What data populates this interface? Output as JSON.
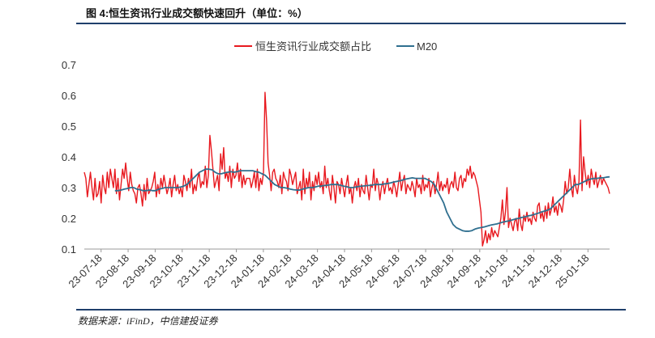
{
  "figure": {
    "title": "图 4:恒生资讯行业成交额快速回升（单位：%）",
    "source": "数据来源：iFinD，中信建投证券"
  },
  "chart_data": {
    "type": "line",
    "title": "图 4:恒生资讯行业成交额快速回升（单位：%）",
    "xlabel": "",
    "ylabel": "",
    "ylim": [
      0.1,
      0.7
    ],
    "yticks": [
      "0.1",
      "0.2",
      "0.3",
      "0.4",
      "0.5",
      "0.6",
      "0.7"
    ],
    "x_tick_labels": [
      "23-07-18",
      "23-08-18",
      "23-09-18",
      "23-10-18",
      "23-11-18",
      "23-12-18",
      "24-01-18",
      "24-02-18",
      "24-03-18",
      "24-04-18",
      "24-05-18",
      "24-06-18",
      "24-07-18",
      "24-08-18",
      "24-09-18",
      "24-10-18",
      "24-11-18",
      "24-12-18",
      "25-01-18"
    ],
    "legend": [
      "恒生资讯行业成交额占比",
      "M20"
    ],
    "legend_position": "top-center",
    "colors": {
      "share": "#e8191f",
      "ma": "#2f6f8f"
    },
    "series": [
      {
        "name": "恒生资讯行业成交额占比",
        "values": [
          0.35,
          0.33,
          0.27,
          0.31,
          0.35,
          0.3,
          0.26,
          0.33,
          0.27,
          0.28,
          0.32,
          0.25,
          0.34,
          0.3,
          0.28,
          0.35,
          0.3,
          0.36,
          0.33,
          0.3,
          0.36,
          0.28,
          0.33,
          0.26,
          0.31,
          0.36,
          0.33,
          0.38,
          0.33,
          0.29,
          0.35,
          0.31,
          0.29,
          0.28,
          0.25,
          0.3,
          0.31,
          0.28,
          0.24,
          0.31,
          0.26,
          0.33,
          0.28,
          0.29,
          0.3,
          0.32,
          0.35,
          0.27,
          0.31,
          0.28,
          0.33,
          0.3,
          0.34,
          0.31,
          0.28,
          0.3,
          0.33,
          0.27,
          0.31,
          0.34,
          0.29,
          0.31,
          0.28,
          0.3,
          0.27,
          0.34,
          0.32,
          0.29,
          0.33,
          0.3,
          0.36,
          0.28,
          0.31,
          0.29,
          0.33,
          0.35,
          0.3,
          0.32,
          0.31,
          0.37,
          0.3,
          0.34,
          0.47,
          0.42,
          0.36,
          0.3,
          0.32,
          0.34,
          0.29,
          0.41,
          0.36,
          0.43,
          0.33,
          0.35,
          0.32,
          0.37,
          0.3,
          0.36,
          0.33,
          0.34,
          0.38,
          0.32,
          0.36,
          0.3,
          0.34,
          0.31,
          0.33,
          0.33,
          0.33,
          0.3,
          0.32,
          0.35,
          0.3,
          0.36,
          0.29,
          0.33,
          0.31,
          0.35,
          0.61,
          0.52,
          0.38,
          0.34,
          0.29,
          0.35,
          0.36,
          0.33,
          0.32,
          0.3,
          0.34,
          0.28,
          0.35,
          0.33,
          0.32,
          0.29,
          0.36,
          0.34,
          0.31,
          0.33,
          0.35,
          0.28,
          0.3,
          0.32,
          0.26,
          0.36,
          0.28,
          0.33,
          0.3,
          0.35,
          0.26,
          0.32,
          0.29,
          0.34,
          0.31,
          0.35,
          0.3,
          0.32,
          0.28,
          0.37,
          0.3,
          0.33,
          0.29,
          0.26,
          0.34,
          0.3,
          0.25,
          0.32,
          0.31,
          0.28,
          0.33,
          0.3,
          0.27,
          0.31,
          0.34,
          0.28,
          0.3,
          0.25,
          0.3,
          0.32,
          0.29,
          0.33,
          0.27,
          0.31,
          0.29,
          0.28,
          0.34,
          0.3,
          0.26,
          0.31,
          0.3,
          0.36,
          0.29,
          0.33,
          0.31,
          0.26,
          0.3,
          0.32,
          0.28,
          0.31,
          0.33,
          0.29,
          0.3,
          0.28,
          0.32,
          0.3,
          0.27,
          0.31,
          0.35,
          0.29,
          0.32,
          0.34,
          0.28,
          0.31,
          0.3,
          0.29,
          0.32,
          0.3,
          0.27,
          0.33,
          0.3,
          0.31,
          0.28,
          0.34,
          0.29,
          0.31,
          0.3,
          0.33,
          0.27,
          0.3,
          0.32,
          0.28,
          0.31,
          0.35,
          0.29,
          0.32,
          0.29,
          0.31,
          0.3,
          0.33,
          0.28,
          0.31,
          0.32,
          0.3,
          0.35,
          0.3,
          0.29,
          0.33,
          0.34,
          0.3,
          0.33,
          0.32,
          0.36,
          0.34,
          0.37,
          0.33,
          0.35,
          0.34,
          0.32,
          0.3,
          0.26,
          0.22,
          0.11,
          0.13,
          0.16,
          0.12,
          0.15,
          0.13,
          0.17,
          0.14,
          0.16,
          0.15,
          0.14,
          0.17,
          0.2,
          0.26,
          0.18,
          0.22,
          0.3,
          0.17,
          0.2,
          0.18,
          0.16,
          0.19,
          0.2,
          0.16,
          0.23,
          0.18,
          0.16,
          0.21,
          0.19,
          0.22,
          0.19,
          0.2,
          0.18,
          0.22,
          0.2,
          0.19,
          0.24,
          0.25,
          0.2,
          0.22,
          0.19,
          0.24,
          0.2,
          0.25,
          0.21,
          0.23,
          0.27,
          0.22,
          0.24,
          0.21,
          0.25,
          0.24,
          0.22,
          0.26,
          0.32,
          0.28,
          0.3,
          0.36,
          0.3,
          0.27,
          0.34,
          0.3,
          0.28,
          0.32,
          0.52,
          0.29,
          0.4,
          0.35,
          0.31,
          0.34,
          0.3,
          0.36,
          0.33,
          0.31,
          0.35,
          0.3,
          0.32,
          0.34,
          0.31,
          0.33,
          0.32,
          0.31,
          0.3,
          0.28
        ]
      },
      {
        "name": "M20",
        "values": [
          0.29,
          0.29,
          0.292,
          0.295,
          0.297,
          0.3,
          0.3,
          0.295,
          0.293,
          0.29,
          0.29,
          0.292,
          0.29,
          0.29,
          0.295,
          0.297,
          0.3,
          0.3,
          0.3,
          0.3,
          0.3,
          0.302,
          0.305,
          0.31,
          0.32,
          0.33,
          0.34,
          0.35,
          0.355,
          0.36,
          0.36,
          0.358,
          0.35,
          0.345,
          0.345,
          0.348,
          0.35,
          0.352,
          0.35,
          0.352,
          0.355,
          0.355,
          0.355,
          0.355,
          0.355,
          0.352,
          0.35,
          0.345,
          0.34,
          0.33,
          0.32,
          0.31,
          0.305,
          0.3,
          0.3,
          0.298,
          0.295,
          0.293,
          0.292,
          0.292,
          0.295,
          0.298,
          0.3,
          0.3,
          0.302,
          0.305,
          0.305,
          0.307,
          0.308,
          0.31,
          0.31,
          0.31,
          0.308,
          0.305,
          0.303,
          0.3,
          0.3,
          0.302,
          0.304,
          0.305,
          0.306,
          0.307,
          0.308,
          0.31,
          0.31,
          0.31,
          0.312,
          0.313,
          0.315,
          0.318,
          0.32,
          0.322,
          0.325,
          0.328,
          0.33,
          0.332,
          0.33,
          0.33,
          0.33,
          0.33,
          0.325,
          0.32,
          0.31,
          0.29,
          0.27,
          0.25,
          0.22,
          0.2,
          0.18,
          0.17,
          0.165,
          0.16,
          0.158,
          0.158,
          0.16,
          0.165,
          0.168,
          0.17,
          0.172,
          0.175,
          0.178,
          0.18,
          0.182,
          0.185,
          0.188,
          0.19,
          0.192,
          0.195,
          0.198,
          0.2,
          0.203,
          0.205,
          0.208,
          0.21,
          0.213,
          0.216,
          0.22,
          0.223,
          0.226,
          0.23,
          0.24,
          0.25,
          0.26,
          0.27,
          0.28,
          0.29,
          0.3,
          0.31,
          0.31,
          0.315,
          0.32,
          0.325,
          0.328,
          0.33,
          0.33,
          0.332,
          0.332,
          0.334,
          0.335
        ]
      }
    ]
  }
}
